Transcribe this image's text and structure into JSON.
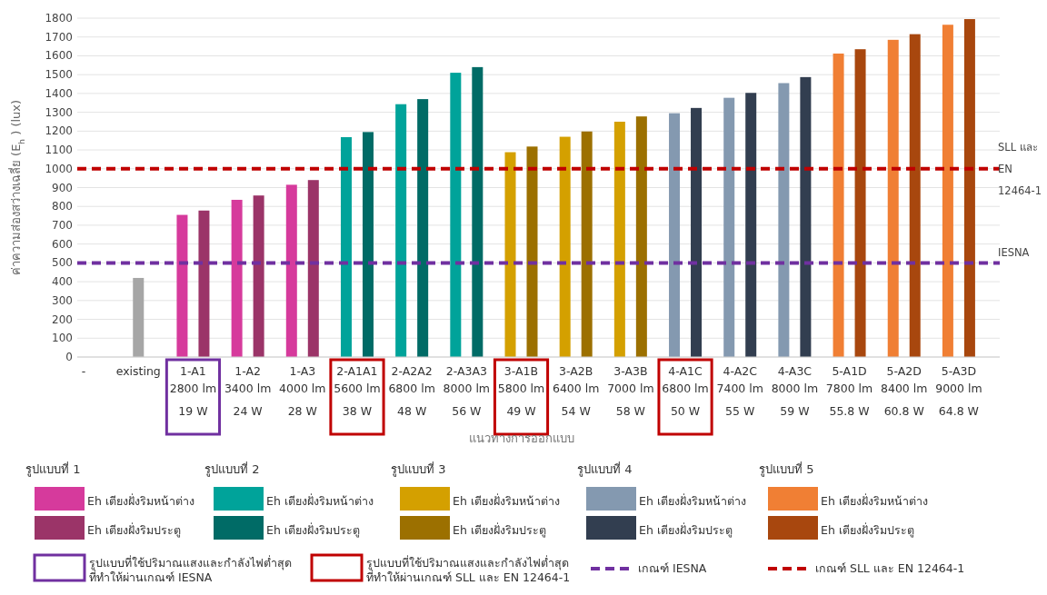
{
  "chart_data": {
    "type": "bar",
    "ylabel": "ค่าความส่องสว่างเฉลี่ย (E$_{h}$ ) (lux)",
    "xlabel": "แนวทางการออกแบบ",
    "categories": [
      "-",
      "existing",
      "1-A1\n2800 lm\n19 W",
      "1-A2\n3400 lm\n24 W",
      "1-A3\n4000 lm\n28 W",
      "2-A1A1\n5600 lm\n38 W",
      "2-A2A2\n6800 lm\n48 W",
      "2-A3A3\n8000 lm\n56 W",
      "3-A1B\n5800 lm\n49 W",
      "3-A2B\n6400 lm\n54 W",
      "3-A3B\n7000 lm\n58 W",
      "4-A1C\n6800 lm\n50 W",
      "4-A2C\n7400 lm\n55 W",
      "4-A3C\n8000 lm\n59 W",
      "5-A1D\n7800 lm\n55.8 W",
      "5-A2D\n8400 lm\n60.8 W",
      "5-A3D\n9000 lm\n64.8 W"
    ],
    "series": [
      {
        "color": "#a6a6a6",
        "values": [
          null,
          420,
          null,
          null,
          null,
          null,
          null,
          null,
          null,
          null,
          null,
          null,
          null,
          null,
          null,
          null,
          null
        ]
      },
      {
        "name": "Eh เตียงฝั่งริมหน้าต่าง",
        "color": "#d63a9c",
        "values": [
          null,
          null,
          755,
          835,
          915,
          null,
          null,
          null,
          null,
          null,
          null,
          null,
          null,
          null,
          null,
          null,
          null
        ]
      },
      {
        "name": "Eh เตียงฝั่งริมประตู",
        "color": "#9b3468",
        "values": [
          null,
          null,
          778,
          858,
          940,
          null,
          null,
          null,
          null,
          null,
          null,
          null,
          null,
          null,
          null,
          null,
          null
        ]
      },
      {
        "name": "Eh เตียงฝั่งริมหน้าต่าง",
        "color": "#00a39a",
        "values": [
          null,
          null,
          null,
          null,
          null,
          1168,
          1343,
          1510,
          null,
          null,
          null,
          null,
          null,
          null,
          null,
          null,
          null
        ]
      },
      {
        "name": "Eh เตียงฝั่งริมประตู",
        "color": "#006b66",
        "values": [
          null,
          null,
          null,
          null,
          null,
          1195,
          1370,
          1540,
          null,
          null,
          null,
          null,
          null,
          null,
          null,
          null,
          null
        ]
      },
      {
        "name": "Eh เตียงฝั่งริมหน้าต่าง",
        "color": "#d4a000",
        "values": [
          null,
          null,
          null,
          null,
          null,
          null,
          null,
          null,
          1088,
          1170,
          1250,
          null,
          null,
          null,
          null,
          null,
          null
        ]
      },
      {
        "name": "Eh เตียงฝั่งริมประตู",
        "color": "#9c7000",
        "values": [
          null,
          null,
          null,
          null,
          null,
          null,
          null,
          null,
          1118,
          1198,
          1278,
          null,
          null,
          null,
          null,
          null,
          null
        ]
      },
      {
        "name": "Eh เตียงฝั่งริมหน้าต่าง",
        "color": "#8499b0",
        "values": [
          null,
          null,
          null,
          null,
          null,
          null,
          null,
          null,
          null,
          null,
          null,
          1295,
          1377,
          1455,
          null,
          null,
          null
        ]
      },
      {
        "name": "Eh เตียงฝั่งริมประตู",
        "color": "#323e50",
        "values": [
          null,
          null,
          null,
          null,
          null,
          null,
          null,
          null,
          null,
          null,
          null,
          1323,
          1403,
          1487,
          null,
          null,
          null
        ]
      },
      {
        "name": "Eh เตียงฝั่งริมหน้าต่าง",
        "color": "#f07f34",
        "values": [
          null,
          null,
          null,
          null,
          null,
          null,
          null,
          null,
          null,
          null,
          null,
          null,
          null,
          null,
          1612,
          1685,
          1765
        ]
      },
      {
        "name": "Eh เตียงฝั่งริมประตู",
        "color": "#a8470e",
        "values": [
          null,
          null,
          null,
          null,
          null,
          null,
          null,
          null,
          null,
          null,
          null,
          null,
          null,
          null,
          1635,
          1715,
          1795
        ]
      }
    ],
    "ylim": [
      0,
      1800
    ],
    "yticks": [
      0,
      100,
      200,
      300,
      400,
      500,
      600,
      700,
      800,
      900,
      1000,
      1100,
      1200,
      1300,
      1400,
      1500,
      1600,
      1700,
      1800
    ],
    "grid": "y",
    "legend": "bottom",
    "ref_lines": [
      {
        "axis": "y",
        "value": 500,
        "label": "เกณฑ์ IESNA",
        "color": "#7030a0",
        "line_style": "dashed"
      },
      {
        "axis": "y",
        "value": 1000,
        "label": "เกณฑ์ SLL และ EN 12464-1",
        "color": "#c00000",
        "line_style": "dashed"
      }
    ],
    "annotations": [
      "IESNA",
      "SLL และ EN 12464-1",
      "รูปแบบที่ 1",
      "รูปแบบที่ 2",
      "รูปแบบที่ 3",
      "รูปแบบที่ 4",
      "รูปแบบที่ 5",
      "รูปแบบที่ใช้ปริมาณแสงและกำลังไฟต่ำสุดที่ทำให้ผ่านเกณฑ์ IESNA",
      "รูปแบบที่ใช้ปริมาณแสงและกำลังไฟต่ำสุดที่ทำให้ผ่านเกณฑ์ SLL และ EN 12464-1"
    ]
  }
}
